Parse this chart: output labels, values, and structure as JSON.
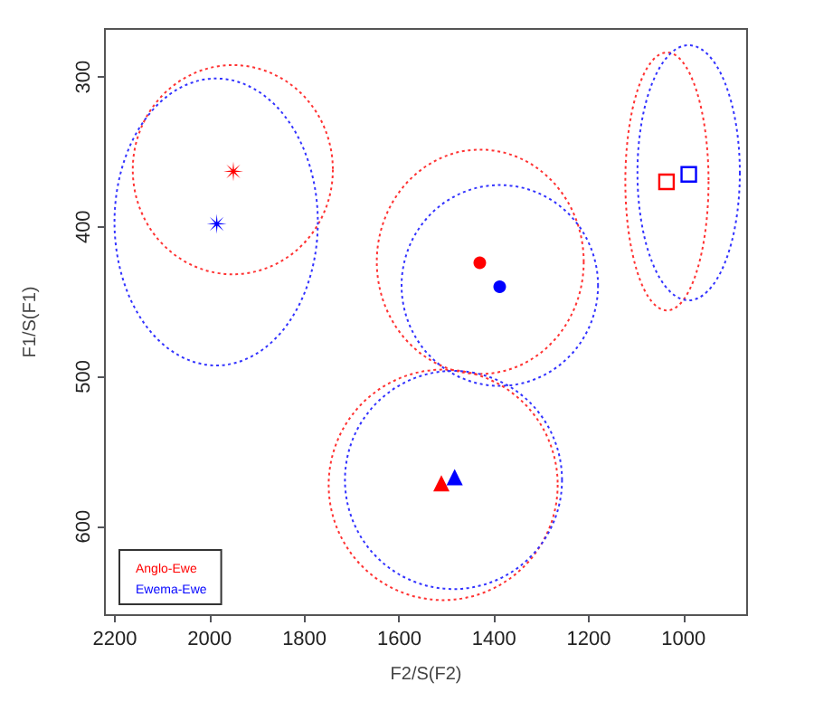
{
  "chart_data": {
    "type": "scatter",
    "xlabel": "F2/S(F2)",
    "ylabel": "F1/S(F1)",
    "xlim": [
      2221,
      866
    ],
    "xticks": [
      2200,
      2000,
      1800,
      1600,
      1400,
      1200,
      1000
    ],
    "ylim": [
      659,
      268
    ],
    "yticks": [
      300,
      400,
      500,
      600
    ],
    "grid": false,
    "legend": "bottom left",
    "series": [
      {
        "name": "Anglo-Ewe",
        "color": "#ff0000",
        "marker": "star",
        "x": [
          1950
        ],
        "values": [
          363
        ]
      },
      {
        "name": "Ewema-Ewe",
        "color": "#0000ff",
        "marker": "star",
        "x": [
          1985
        ],
        "values": [
          398
        ]
      },
      {
        "color": "#ff0000",
        "marker": "circle",
        "x": [
          1430
        ],
        "values": [
          424
        ]
      },
      {
        "color": "#0000ff",
        "marker": "circle",
        "x": [
          1388
        ],
        "values": [
          440
        ]
      },
      {
        "color": "#ff0000",
        "marker": "square",
        "x": [
          1036
        ],
        "values": [
          370
        ]
      },
      {
        "color": "#0000ff",
        "marker": "square",
        "x": [
          989
        ],
        "values": [
          365
        ]
      },
      {
        "color": "#ff0000",
        "marker": "triangle",
        "x": [
          1511
        ],
        "values": [
          571
        ]
      },
      {
        "color": "#0000ff",
        "marker": "triangle",
        "x": [
          1483
        ],
        "values": [
          567
        ]
      }
    ]
  }
}
